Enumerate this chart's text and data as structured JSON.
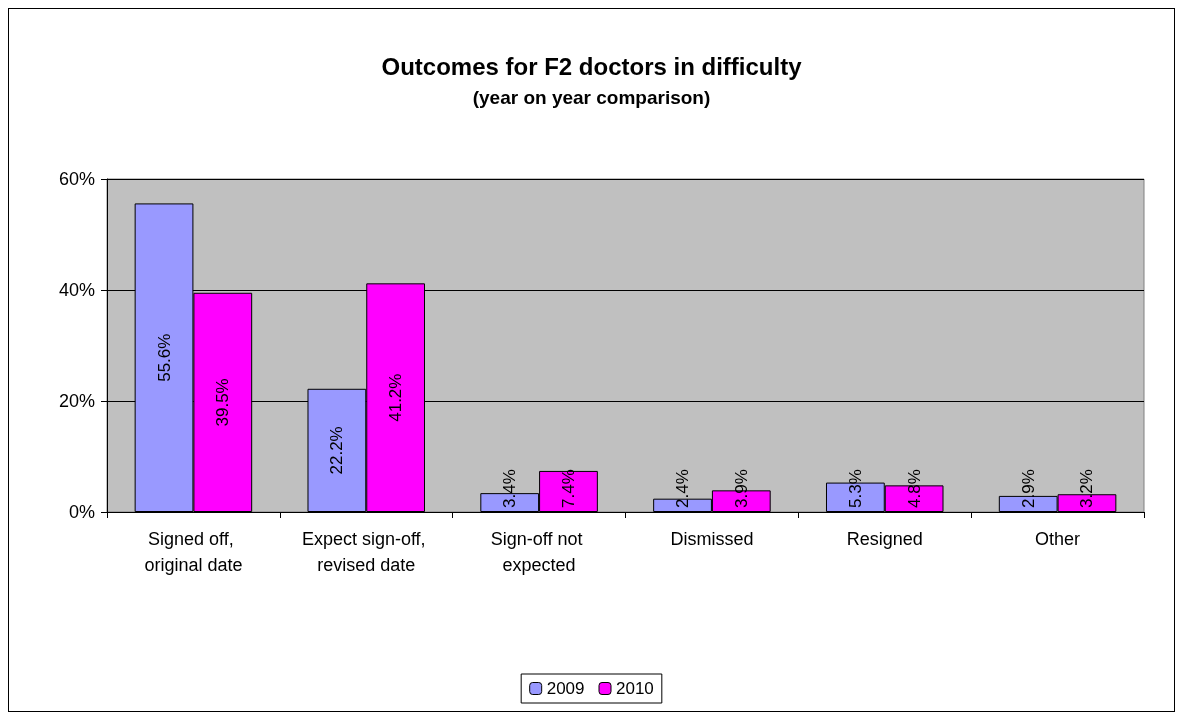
{
  "chart_data": {
    "type": "bar",
    "title": "Outcomes for F2 doctors in difficulty",
    "subtitle": "(year on year comparison)",
    "categories": [
      "Signed off, original date",
      "Expect sign-off, revised date",
      "Sign-off not expected",
      "Dismissed",
      "Resigned",
      "Other"
    ],
    "series": [
      {
        "name": "2009",
        "color": "#9999ff",
        "values": [
          55.6,
          22.2,
          3.4,
          2.4,
          5.3,
          2.9
        ],
        "value_labels": [
          "55.6%",
          "22.2%",
          "3.4%",
          "2.4%",
          "5.3%",
          "2.9%"
        ]
      },
      {
        "name": "2010",
        "color": "#ff00ff",
        "values": [
          39.5,
          41.2,
          7.4,
          3.9,
          4.8,
          3.2
        ],
        "value_labels": [
          "39.5%",
          "41.2%",
          "7.4%",
          "3.9%",
          "4.8%",
          "3.2%"
        ]
      }
    ],
    "ylim": [
      0,
      60
    ],
    "yticks": [
      {
        "value": 0,
        "label": "0%"
      },
      {
        "value": 20,
        "label": "20%"
      },
      {
        "value": 40,
        "label": "40%"
      },
      {
        "value": 60,
        "label": "60%"
      }
    ],
    "grid": "y",
    "legend": "bottom"
  }
}
